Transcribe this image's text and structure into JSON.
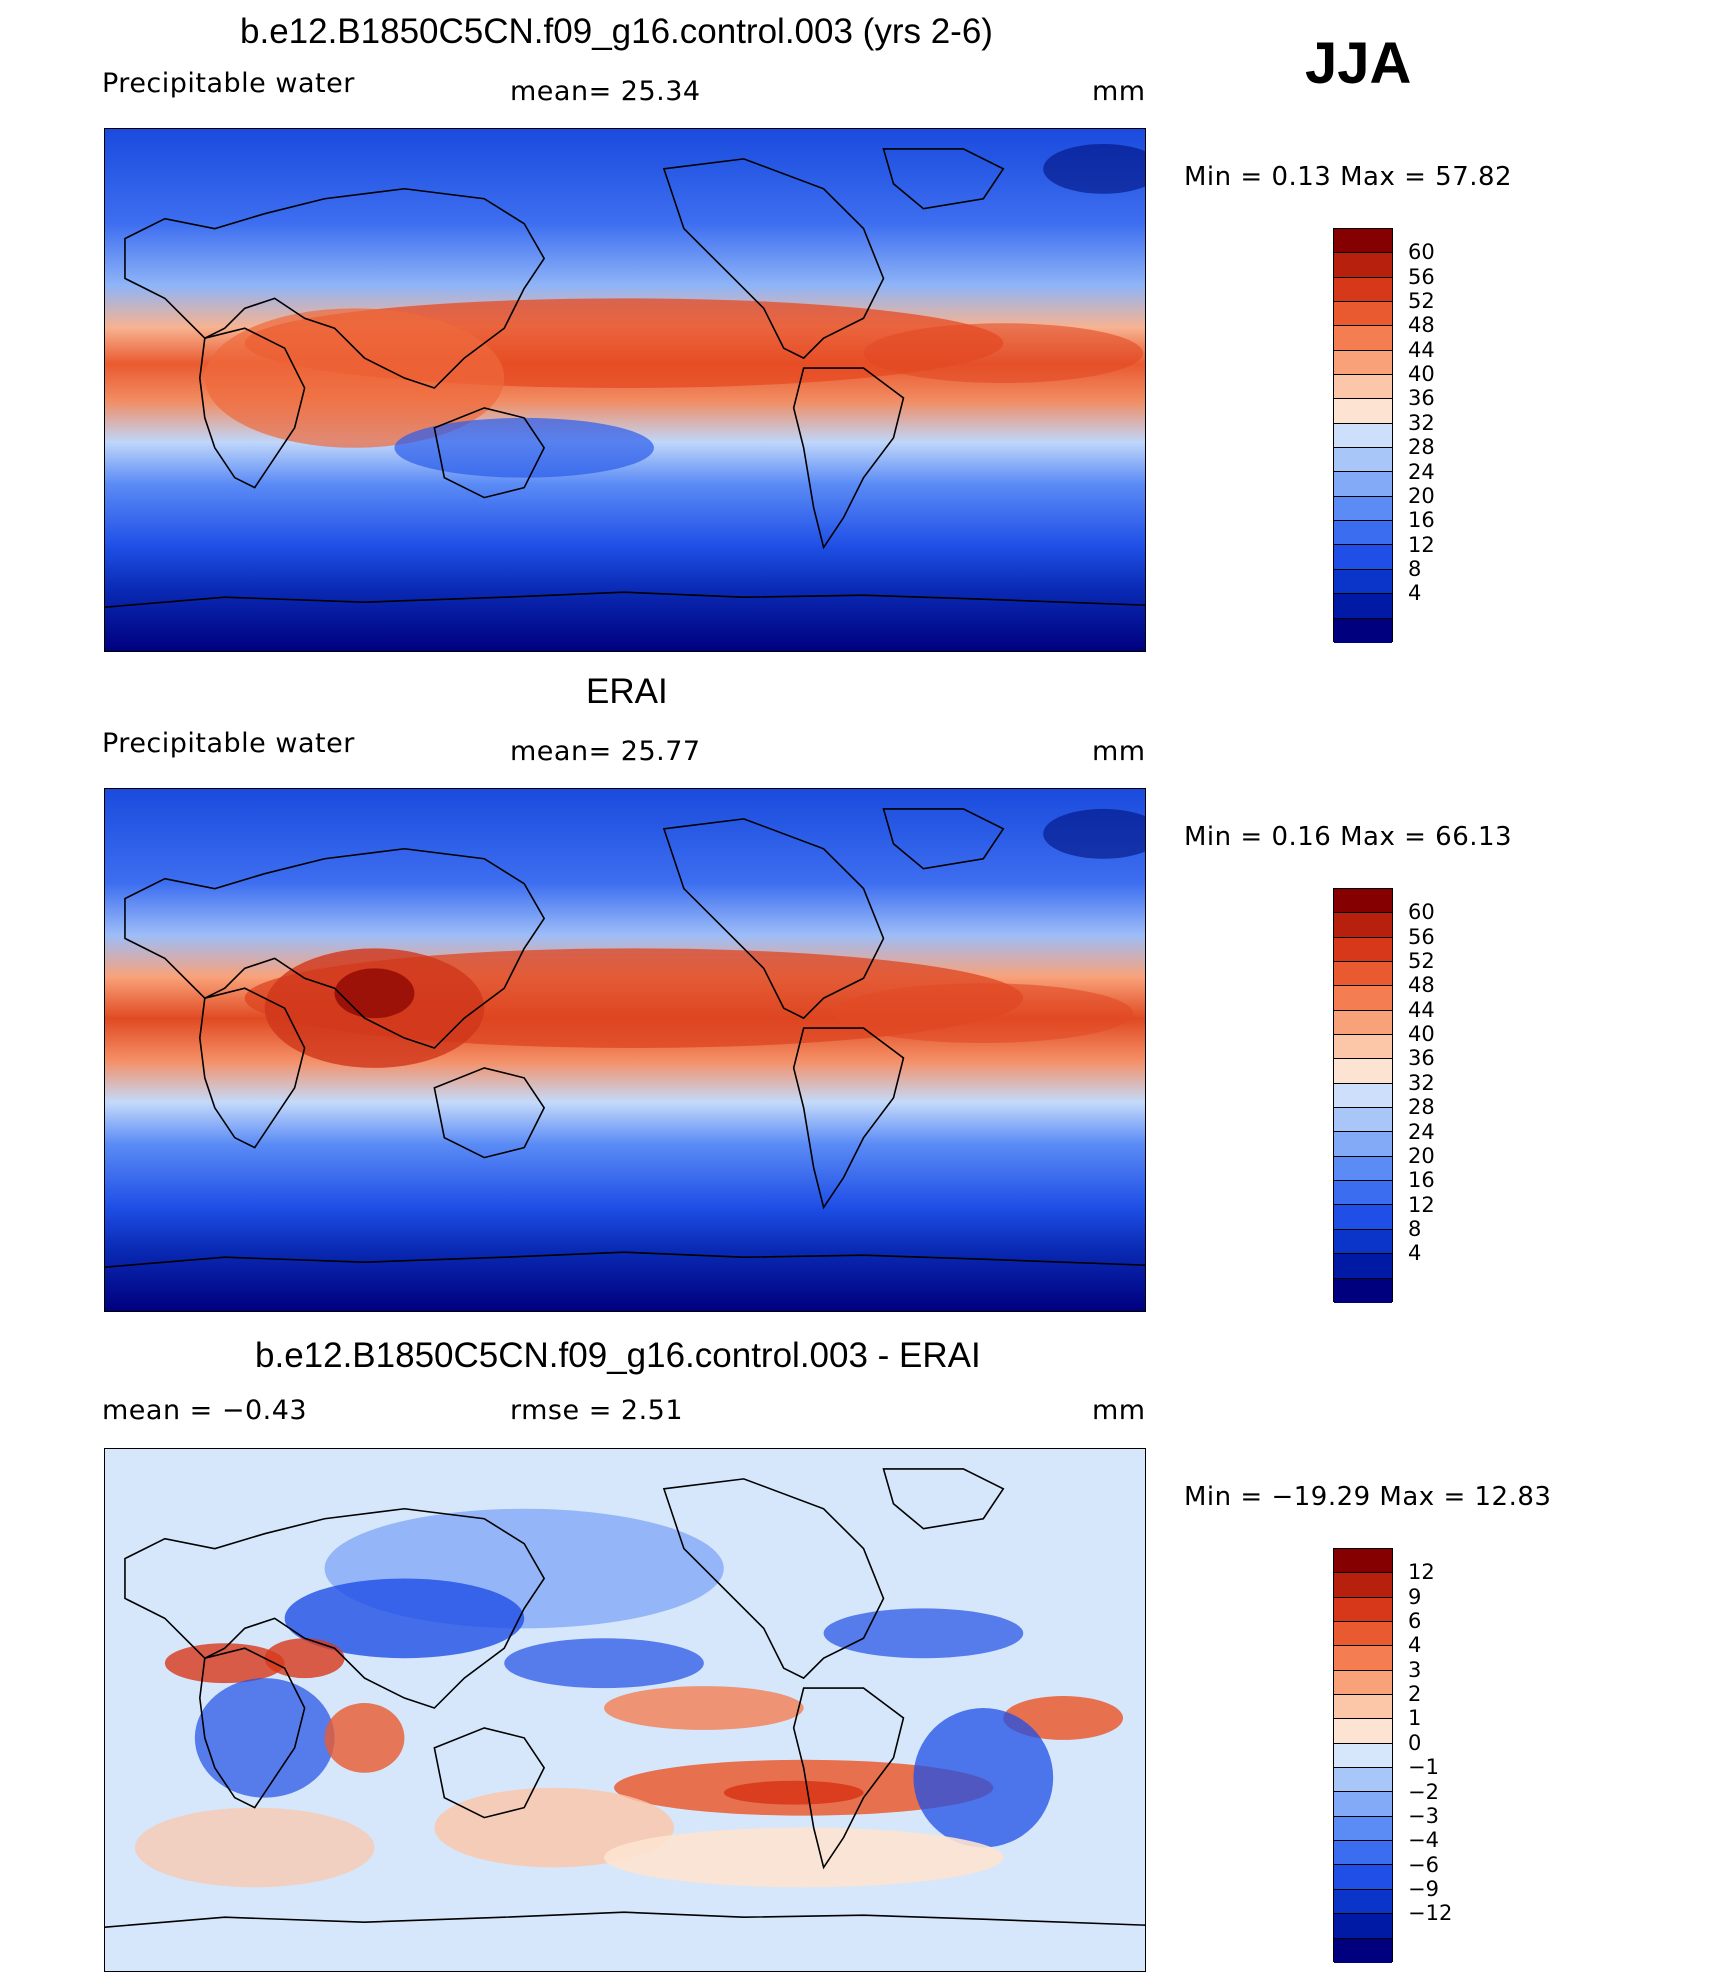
{
  "season": "JJA",
  "colors": {
    "abs_scale": [
      "#00007f",
      "#001aa6",
      "#0a35c8",
      "#1f4fe6",
      "#3a6df0",
      "#5b8bf5",
      "#83aaf7",
      "#a9c6f9",
      "#cddffb",
      "#fde3d1",
      "#fcc6a8",
      "#f9a27a",
      "#f47e52",
      "#ea5a30",
      "#d8381a",
      "#b8200e",
      "#850000"
    ],
    "diff_scale": [
      "#00007f",
      "#001aa6",
      "#0a35c8",
      "#1f4fe6",
      "#3a6df0",
      "#5b8bf5",
      "#83aaf7",
      "#a9c6f9",
      "#d6e7fb",
      "#fde3d1",
      "#fcc6a8",
      "#f9a27a",
      "#f47e52",
      "#ea5a30",
      "#d8381a",
      "#b8200e",
      "#850000"
    ]
  },
  "panels": [
    {
      "title": "b.e12.B1850C5CN.f09_g16.control.003 (yrs 2-6)",
      "variable": "Precipitable  water",
      "stat": "mean=   25.34",
      "units": "mm",
      "minmax": "Min  =     0.13  Max  =    57.82",
      "ticks": [
        "60",
        "56",
        "52",
        "48",
        "44",
        "40",
        "36",
        "32",
        "28",
        "24",
        "20",
        "16",
        "12",
        "8",
        "4"
      ]
    },
    {
      "title": "ERAI",
      "variable": "Precipitable  water",
      "stat": "mean=   25.77",
      "units": "mm",
      "minmax": "Min  =     0.16  Max  =    66.13",
      "ticks": [
        "60",
        "56",
        "52",
        "48",
        "44",
        "40",
        "36",
        "32",
        "28",
        "24",
        "20",
        "16",
        "12",
        "8",
        "4"
      ]
    },
    {
      "title": "b.e12.B1850C5CN.f09_g16.control.003 - ERAI",
      "stat_left": "mean  =    −0.43",
      "stat": "rmse  =     2.51",
      "units": "mm",
      "minmax": "Min  = −19.29  Max  =    12.83",
      "ticks": [
        "12",
        "9",
        "6",
        "4",
        "3",
        "2",
        "1",
        "0",
        "−1",
        "−2",
        "−3",
        "−4",
        "−6",
        "−9",
        "−12"
      ]
    }
  ]
}
